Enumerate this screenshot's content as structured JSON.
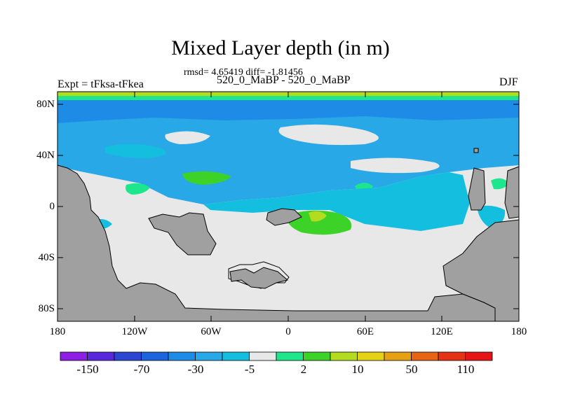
{
  "title": "Mixed Layer depth (in m)",
  "stats_line": "rmsd= 4.65419 diff= -1.81456",
  "subtitle": "520_0_MaBP - 520_0_MaBP",
  "left_label": "Expt = tFksa-tFkea",
  "right_label": "DJF",
  "lat_ticks": [
    "80N",
    "40N",
    "0",
    "40S",
    "80S"
  ],
  "lon_ticks": [
    "180",
    "120W",
    "60W",
    "0",
    "60E",
    "120E",
    "180"
  ],
  "colorbar": {
    "colors": [
      "#8c1ee6",
      "#5a28dc",
      "#2d46d2",
      "#1e64dc",
      "#1e8ce6",
      "#28a8e6",
      "#14bede",
      "#e8e8e8",
      "#1ee68c",
      "#3cd228",
      "#b4dc1e",
      "#e6d214",
      "#e6a014",
      "#e66414",
      "#e63214",
      "#e61414"
    ],
    "labels": [
      "-150",
      "-70",
      "-30",
      "-5",
      "2",
      "10",
      "50",
      "110"
    ]
  },
  "legend_colors": {
    "land": "#a0a0a0",
    "near_zero": "#e8e8e8",
    "deep_blue": "#1e8ce6",
    "blue": "#28a8e6",
    "cyan": "#14bede",
    "green": "#1ee68c",
    "bright_green": "#3cd228",
    "yellow_green": "#b4dc1e"
  }
}
